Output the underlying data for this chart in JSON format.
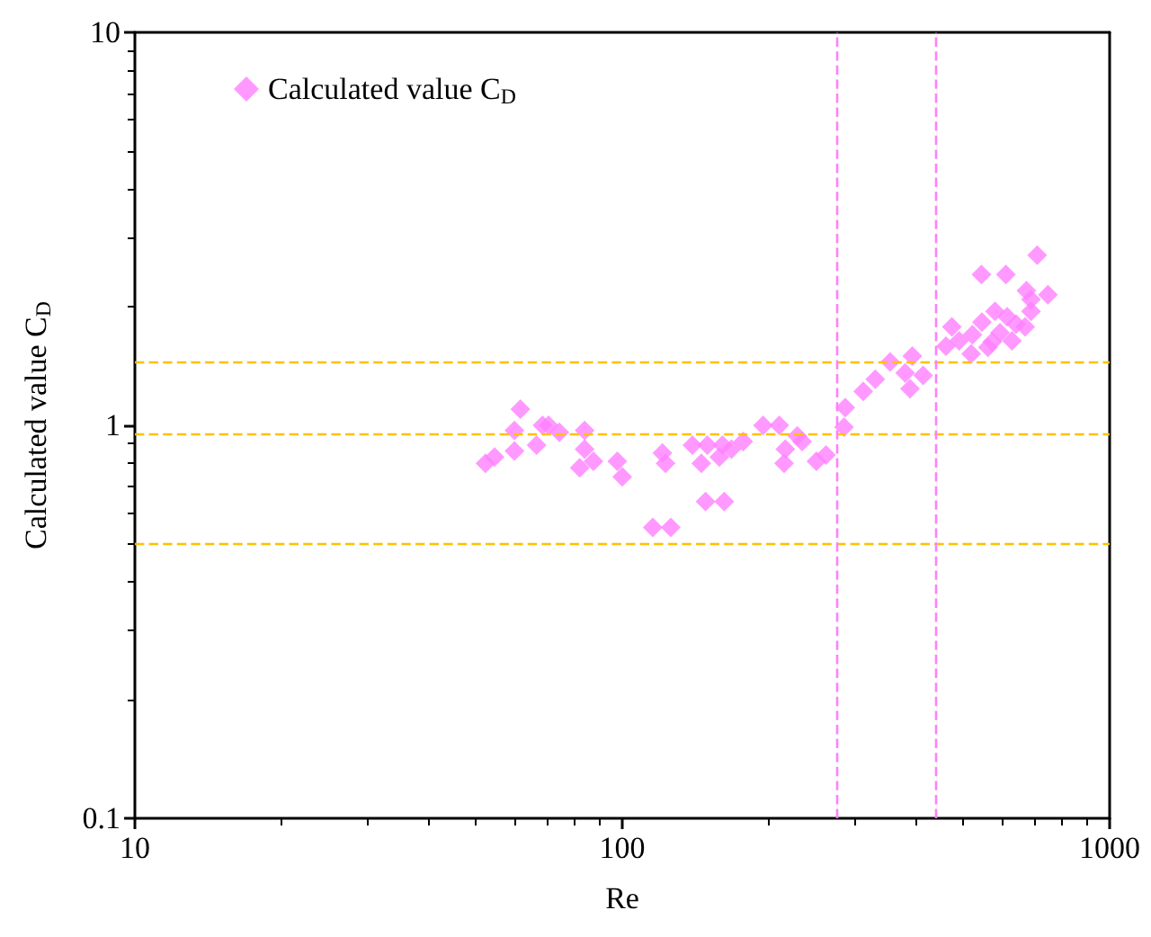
{
  "chart_data": {
    "type": "scatter",
    "xlabel": "Re",
    "ylabel": "Calculated value C$_{D}$",
    "log": "xy",
    "xlim": [
      10,
      1000
    ],
    "xticks": [
      10,
      100,
      1000
    ],
    "ylim": [
      0.1,
      10
    ],
    "yticks": [
      0.1,
      1,
      10
    ],
    "grid": false,
    "legend": "top left",
    "marker": "diamond",
    "series": [
      {
        "name": "Calculated value C$_{D}$",
        "color": "#ff80ff",
        "x": [
          52.4,
          54.7,
          60.1,
          60.1,
          61.8,
          66.7,
          68.6,
          70.6,
          74.3,
          83.7,
          81.8,
          83.7,
          87.3,
          97.7,
          100,
          120.9,
          122.7,
          139.3,
          145.3,
          149.5,
          148.2,
          161.9,
          158.2,
          160.6,
          167.5,
          177.1,
          194.5,
          210,
          216.1,
          214.8,
          228.6,
          233.9,
          250.3,
          261.8,
          285.1,
          286.8,
          312.2,
          330.5,
          354.6,
          380.6,
          389.4,
          393.7,
          414.3,
          461.5,
          474.6,
          491.1,
          519.9,
          523,
          547,
          562.6,
          582,
          595.7,
          616.2,
          630.4,
          642.9,
          670.8,
          689.8,
          674.8,
          747.2,
          710.2,
          545.8,
          612.5,
          574.1,
          689.8,
          115.5,
          125.8
        ],
        "values": [
          0.8,
          0.83,
          0.86,
          0.97,
          1.1,
          0.89,
          1.0,
          1.0,
          0.96,
          0.97,
          0.78,
          0.87,
          0.81,
          0.81,
          0.74,
          0.85,
          0.8,
          0.89,
          0.8,
          0.89,
          0.64,
          0.64,
          0.83,
          0.89,
          0.87,
          0.91,
          1.0,
          1.0,
          0.87,
          0.8,
          0.94,
          0.91,
          0.81,
          0.84,
          0.99,
          1.11,
          1.22,
          1.31,
          1.45,
          1.36,
          1.24,
          1.5,
          1.34,
          1.59,
          1.78,
          1.64,
          1.52,
          1.7,
          1.83,
          1.58,
          1.95,
          1.72,
          1.89,
          1.64,
          1.81,
          1.78,
          1.95,
          2.2,
          2.15,
          2.71,
          2.42,
          2.42,
          1.63,
          2.09,
          0.55,
          0.55
        ]
      }
    ],
    "ref_lines": [
      {
        "axis": "y",
        "value": 1.45,
        "color": "#ffc000",
        "line_style": "dashed"
      },
      {
        "axis": "y",
        "value": 0.95,
        "color": "#ffc000",
        "line_style": "dashed"
      },
      {
        "axis": "y",
        "value": 0.5,
        "color": "#ffc000",
        "line_style": "dashed"
      },
      {
        "axis": "x",
        "value": 275,
        "color": "#ff80ff",
        "line_style": "dashed"
      },
      {
        "axis": "x",
        "value": 440,
        "color": "#ff80ff",
        "line_style": "dashed"
      }
    ]
  }
}
